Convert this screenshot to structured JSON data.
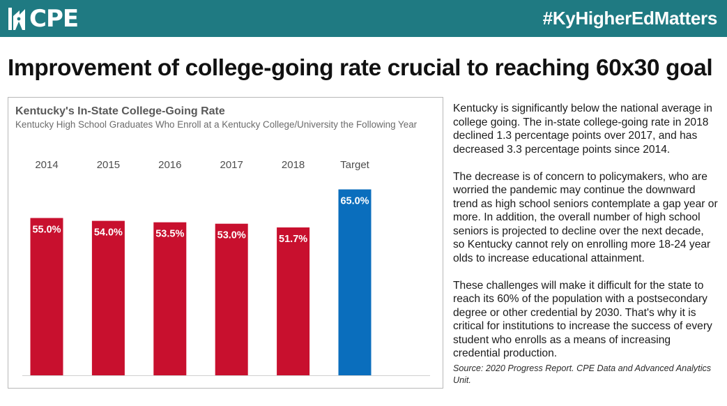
{
  "header": {
    "logo_text": "CPE",
    "hashtag": "#KyHigherEdMatters"
  },
  "headline": "Improvement of college-going rate crucial to reaching 60x30 goal",
  "chart_data": {
    "type": "bar",
    "title": "Kentucky's In-State College-Going Rate",
    "subtitle": "Kentucky High School Graduates Who Enroll at a Kentucky College/University the Following Year",
    "categories": [
      "2014",
      "2015",
      "2016",
      "2017",
      "2018",
      "Target"
    ],
    "values": [
      55.0,
      54.0,
      53.5,
      53.0,
      51.7,
      65.0
    ],
    "value_labels": [
      "55.0%",
      "54.0%",
      "53.5%",
      "53.0%",
      "51.7%",
      "65.0%"
    ],
    "colors": [
      "#c8102e",
      "#c8102e",
      "#c8102e",
      "#c8102e",
      "#c8102e",
      "#0a6ebd"
    ],
    "category_position": "top",
    "grid": false,
    "legend": "none",
    "ylim": [
      0,
      65
    ]
  },
  "body": {
    "paragraphs": [
      "Kentucky is significantly below the national average in college going. The in-state college-going rate in 2018 declined 1.3 percentage points over 2017, and has decreased 3.3 percentage points since 2014.",
      "The decrease is of concern to policymakers, who are worried the pandemic may continue the downward trend as high school seniors contemplate a gap year or more. In addition, the overall number of high school seniors is projected to decline over the next decade, so Kentucky cannot rely on enrolling more 18-24 year olds to increase educational attainment.",
      "These challenges will make it difficult for the state to reach its 60% of the population with a postsecondary degree or other credential by 2030. That's why it is critical for institutions to increase the success of every student who enrolls as a means of increasing credential production."
    ],
    "source": "Source: 2020 Progress Report. CPE Data and Advanced Analytics Unit."
  }
}
